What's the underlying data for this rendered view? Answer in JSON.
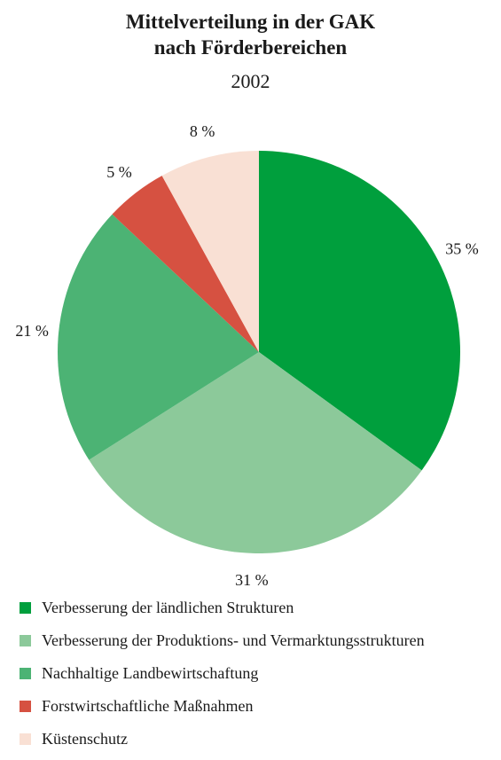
{
  "chart_data": {
    "type": "pie",
    "title": "Mittelverteilung in der GAK",
    "title_line2": "nach Förderbereichen",
    "subtitle": "2002",
    "slices": [
      {
        "label": "Verbesserung der ländlichen Strukturen",
        "value": 35,
        "value_label": "35 %",
        "color": "#009f3d"
      },
      {
        "label": "Verbesserung der Produktions- und Vermarktungsstrukturen",
        "value": 31,
        "value_label": "31 %",
        "color": "#8cc99a"
      },
      {
        "label": "Nachhaltige Landbewirtschaftung",
        "value": 21,
        "value_label": "21 %",
        "color": "#4cb374"
      },
      {
        "label": "Forstwirtschaftliche Maßnahmen",
        "value": 5,
        "value_label": "5 %",
        "color": "#d65141"
      },
      {
        "label": "Küstenschutz",
        "value": 8,
        "value_label": "8 %",
        "color": "#f9e0d4"
      }
    ],
    "start_angle": "12 o'clock",
    "direction": "clockwise",
    "legend_position": "bottom-left"
  }
}
